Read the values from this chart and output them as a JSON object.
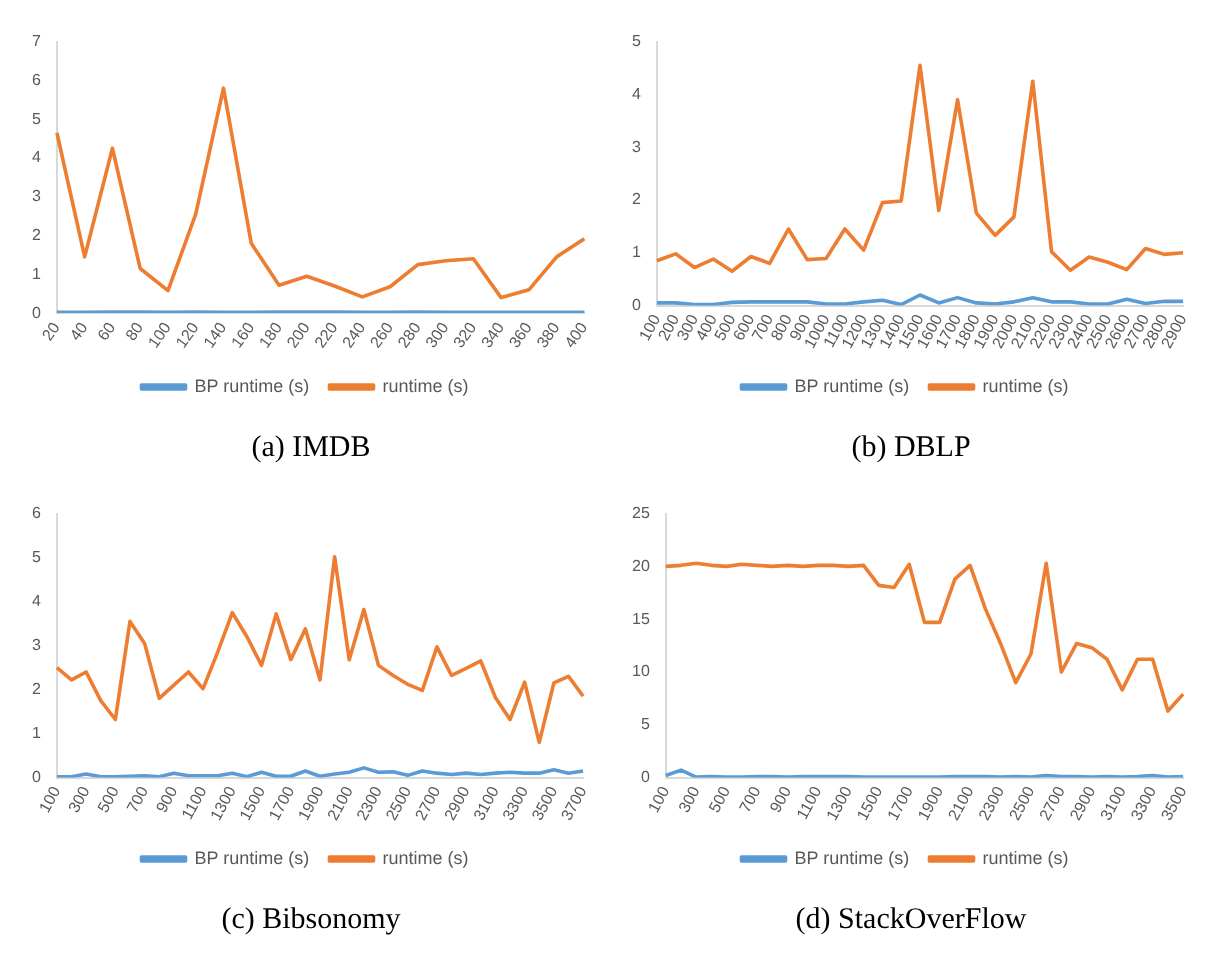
{
  "chart_data": [
    {
      "type": "line",
      "title": "(a) IMDB",
      "categories": [
        "20",
        "40",
        "60",
        "80",
        "100",
        "120",
        "140",
        "160",
        "180",
        "200",
        "220",
        "240",
        "260",
        "280",
        "300",
        "320",
        "340",
        "360",
        "380",
        "400"
      ],
      "ylim": [
        0,
        7
      ],
      "yticks": [
        0,
        1,
        2,
        3,
        4,
        5,
        6,
        7
      ],
      "legend": "bottom",
      "series": [
        {
          "name": "BP runtime (s)",
          "color": "#5b9bd5",
          "values": [
            0.02,
            0.02,
            0.03,
            0.03,
            0.02,
            0.03,
            0.02,
            0.02,
            0.03,
            0.03,
            0.03,
            0.02,
            0.02,
            0.03,
            0.02,
            0.02,
            0.02,
            0.02,
            0.02,
            0.02
          ]
        },
        {
          "name": "runtime (s)",
          "color": "#ed7d31",
          "values": [
            4.65,
            1.45,
            4.25,
            1.15,
            0.58,
            2.55,
            5.8,
            1.8,
            0.72,
            0.95,
            0.7,
            0.42,
            0.68,
            1.25,
            1.35,
            1.4,
            0.4,
            0.6,
            1.45,
            1.92
          ]
        }
      ]
    },
    {
      "type": "line",
      "title": "(b) DBLP",
      "categories": [
        "100",
        "200",
        "300",
        "400",
        "500",
        "600",
        "700",
        "800",
        "900",
        "1000",
        "1100",
        "1200",
        "1300",
        "1400",
        "1500",
        "1600",
        "1700",
        "1800",
        "1900",
        "2000",
        "2100",
        "2200",
        "2300",
        "2400",
        "2500",
        "2600",
        "2700",
        "2800",
        "2900"
      ],
      "ylim": [
        0,
        5
      ],
      "yticks": [
        0,
        1,
        2,
        3,
        4,
        5
      ],
      "legend": "bottom",
      "series": [
        {
          "name": "BP runtime (s)",
          "color": "#5b9bd5",
          "values": [
            0.05,
            0.05,
            0.02,
            0.02,
            0.06,
            0.07,
            0.07,
            0.07,
            0.07,
            0.03,
            0.03,
            0.07,
            0.1,
            0.02,
            0.2,
            0.05,
            0.15,
            0.05,
            0.03,
            0.07,
            0.15,
            0.07,
            0.07,
            0.03,
            0.03,
            0.12,
            0.04,
            0.08,
            0.08
          ]
        },
        {
          "name": "runtime (s)",
          "color": "#ed7d31",
          "values": [
            0.85,
            0.98,
            0.72,
            0.88,
            0.65,
            0.93,
            0.8,
            1.45,
            0.87,
            0.89,
            1.45,
            1.05,
            1.95,
            1.98,
            4.55,
            1.8,
            3.9,
            1.75,
            1.33,
            1.68,
            4.25,
            1.02,
            0.67,
            0.92,
            0.82,
            0.68,
            1.08,
            0.97,
            1.0
          ]
        }
      ]
    },
    {
      "type": "line",
      "title": "(c) Bibsonomy",
      "categories": [
        "100",
        null,
        "300",
        null,
        "500",
        null,
        "700",
        null,
        "900",
        null,
        "1100",
        null,
        "1300",
        null,
        "1500",
        null,
        "1700",
        null,
        "1900",
        null,
        "2100",
        null,
        "2300",
        null,
        "2500",
        null,
        "2700",
        null,
        "2900",
        null,
        "3100",
        null,
        "3300",
        null,
        "3500",
        null,
        "3700"
      ],
      "ylim": [
        0,
        6
      ],
      "yticks": [
        0,
        1,
        2,
        3,
        4,
        5,
        6
      ],
      "legend": "bottom",
      "series": [
        {
          "name": "BP runtime (s)",
          "color": "#5b9bd5",
          "values": [
            0.02,
            0.02,
            0.08,
            0.02,
            0.02,
            0.03,
            0.04,
            0.02,
            0.1,
            0.04,
            0.04,
            0.04,
            0.1,
            0.02,
            0.12,
            0.03,
            0.03,
            0.15,
            0.03,
            0.08,
            0.12,
            0.22,
            0.12,
            0.13,
            0.05,
            0.15,
            0.1,
            0.07,
            0.1,
            0.07,
            0.1,
            0.12,
            0.1,
            0.1,
            0.18,
            0.1,
            0.15
          ]
        },
        {
          "name": "runtime (s)",
          "color": "#ed7d31",
          "values": [
            2.5,
            2.22,
            2.4,
            1.75,
            1.32,
            3.55,
            3.05,
            1.8,
            2.1,
            2.4,
            2.02,
            2.85,
            3.75,
            3.2,
            2.55,
            3.72,
            2.68,
            3.38,
            2.22,
            5.02,
            2.68,
            3.82,
            2.55,
            2.32,
            2.12,
            1.98,
            2.97,
            2.32,
            2.48,
            2.65,
            1.82,
            1.32,
            2.17,
            0.8,
            2.15,
            2.3,
            1.85
          ]
        }
      ]
    },
    {
      "type": "line",
      "title": "(d) StackOverFlow",
      "categories": [
        "100",
        null,
        "300",
        null,
        "500",
        null,
        "700",
        null,
        "900",
        null,
        "1100",
        null,
        "1300",
        null,
        "1500",
        null,
        "1700",
        null,
        "1900",
        null,
        "2100",
        null,
        "2300",
        null,
        "2500",
        null,
        "2700",
        null,
        "2900",
        null,
        "3100",
        null,
        "3300",
        null,
        "3500"
      ],
      "ylim": [
        0,
        25
      ],
      "yticks": [
        0,
        5,
        10,
        15,
        20,
        25
      ],
      "legend": "bottom",
      "series": [
        {
          "name": "BP runtime (s)",
          "color": "#5b9bd5",
          "values": [
            0.2,
            0.7,
            0.05,
            0.1,
            0.05,
            0.05,
            0.1,
            0.1,
            0.05,
            0.1,
            0.1,
            0.1,
            0.1,
            0.05,
            0.05,
            0.05,
            0.05,
            0.05,
            0.05,
            0.1,
            0.1,
            0.1,
            0.05,
            0.1,
            0.05,
            0.2,
            0.1,
            0.1,
            0.05,
            0.1,
            0.05,
            0.1,
            0.2,
            0.05,
            0.1
          ]
        },
        {
          "name": "runtime (s)",
          "color": "#ed7d31",
          "values": [
            20,
            20.1,
            20.3,
            20.1,
            20,
            20.2,
            20.1,
            20,
            20.1,
            20,
            20.1,
            20.1,
            20,
            20.1,
            18.2,
            18,
            20.2,
            14.7,
            14.7,
            18.8,
            20.1,
            16,
            12.7,
            9,
            11.7,
            20.3,
            10,
            12.7,
            12.3,
            11.2,
            8.3,
            11.2,
            11.2,
            6.3,
            7.9
          ]
        }
      ]
    }
  ]
}
